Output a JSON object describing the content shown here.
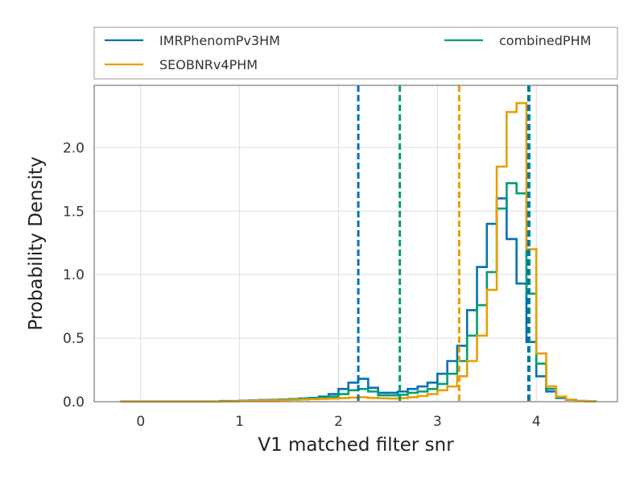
{
  "chart_data": {
    "type": "histogram",
    "xlabel": "V1 matched filter snr",
    "ylabel": "Probability Density",
    "xlim": [
      -0.47,
      4.82
    ],
    "ylim": [
      0,
      2.49
    ],
    "xticks": [
      0,
      1,
      2,
      3,
      4
    ],
    "yticks": [
      0.0,
      0.5,
      1.0,
      1.5,
      2.0
    ],
    "xtick_labels": [
      "0",
      "1",
      "2",
      "3",
      "4"
    ],
    "ytick_labels": [
      "0.0",
      "0.5",
      "1.0",
      "1.5",
      "2.0"
    ],
    "grid": true,
    "legend_position": "above plot",
    "bin_edges": [
      -0.2,
      -0.1,
      0.0,
      0.1,
      0.2,
      0.3,
      0.4,
      0.5,
      0.6,
      0.7,
      0.8,
      0.9,
      1.0,
      1.1,
      1.2,
      1.3,
      1.4,
      1.5,
      1.6,
      1.7,
      1.8,
      1.9,
      2.0,
      2.1,
      2.2,
      2.3,
      2.4,
      2.5,
      2.6,
      2.7,
      2.8,
      2.9,
      3.0,
      3.1,
      3.2,
      3.3,
      3.4,
      3.5,
      3.6,
      3.7,
      3.8,
      3.9,
      4.0,
      4.1,
      4.2,
      4.3,
      4.4,
      4.5,
      4.6
    ],
    "series": [
      {
        "name": "IMRPhenomPv3HM",
        "color": "#0072b2",
        "values": [
          0.002,
          0.002,
          0.002,
          0.002,
          0.002,
          0.002,
          0.002,
          0.002,
          0.002,
          0.002,
          0.005,
          0.005,
          0.008,
          0.01,
          0.013,
          0.015,
          0.017,
          0.02,
          0.025,
          0.03,
          0.04,
          0.06,
          0.1,
          0.15,
          0.18,
          0.11,
          0.07,
          0.07,
          0.08,
          0.1,
          0.12,
          0.15,
          0.22,
          0.32,
          0.44,
          0.72,
          1.06,
          1.4,
          1.6,
          1.28,
          0.93,
          0.47,
          0.2,
          0.08,
          0.03,
          0.015,
          0.005,
          0.002
        ],
        "median": 2.2
      },
      {
        "name": "SEOBNRv4PHM",
        "color": "#e69f00",
        "values": [
          0.001,
          0.001,
          0.001,
          0.001,
          0.001,
          0.001,
          0.001,
          0.001,
          0.001,
          0.001,
          0.002,
          0.003,
          0.005,
          0.007,
          0.009,
          0.011,
          0.013,
          0.015,
          0.017,
          0.02,
          0.022,
          0.024,
          0.028,
          0.032,
          0.035,
          0.03,
          0.027,
          0.025,
          0.028,
          0.035,
          0.045,
          0.06,
          0.09,
          0.12,
          0.2,
          0.32,
          0.52,
          0.88,
          1.85,
          2.28,
          2.35,
          1.2,
          0.38,
          0.12,
          0.04,
          0.015,
          0.005,
          0.002
        ],
        "median": 3.22
      },
      {
        "name": "combinedPHM",
        "color": "#009e73",
        "values": [
          0.001,
          0.001,
          0.001,
          0.001,
          0.001,
          0.001,
          0.001,
          0.001,
          0.001,
          0.001,
          0.003,
          0.004,
          0.006,
          0.008,
          0.011,
          0.013,
          0.015,
          0.017,
          0.02,
          0.025,
          0.03,
          0.04,
          0.06,
          0.09,
          0.1,
          0.08,
          0.05,
          0.05,
          0.055,
          0.07,
          0.08,
          0.1,
          0.14,
          0.22,
          0.32,
          0.52,
          0.76,
          1.02,
          1.52,
          1.72,
          1.64,
          0.85,
          0.3,
          0.1,
          0.035,
          0.015,
          0.005,
          0.002
        ],
        "median": 2.62
      }
    ],
    "median_lines": [
      {
        "color": "#0072b2",
        "x": 2.2
      },
      {
        "color": "#009e73",
        "x": 2.62
      },
      {
        "color": "#e69f00",
        "x": 3.22
      },
      {
        "color": "#009e73",
        "x": 3.93
      },
      {
        "color": "#0072b2",
        "x": 3.92
      }
    ]
  }
}
